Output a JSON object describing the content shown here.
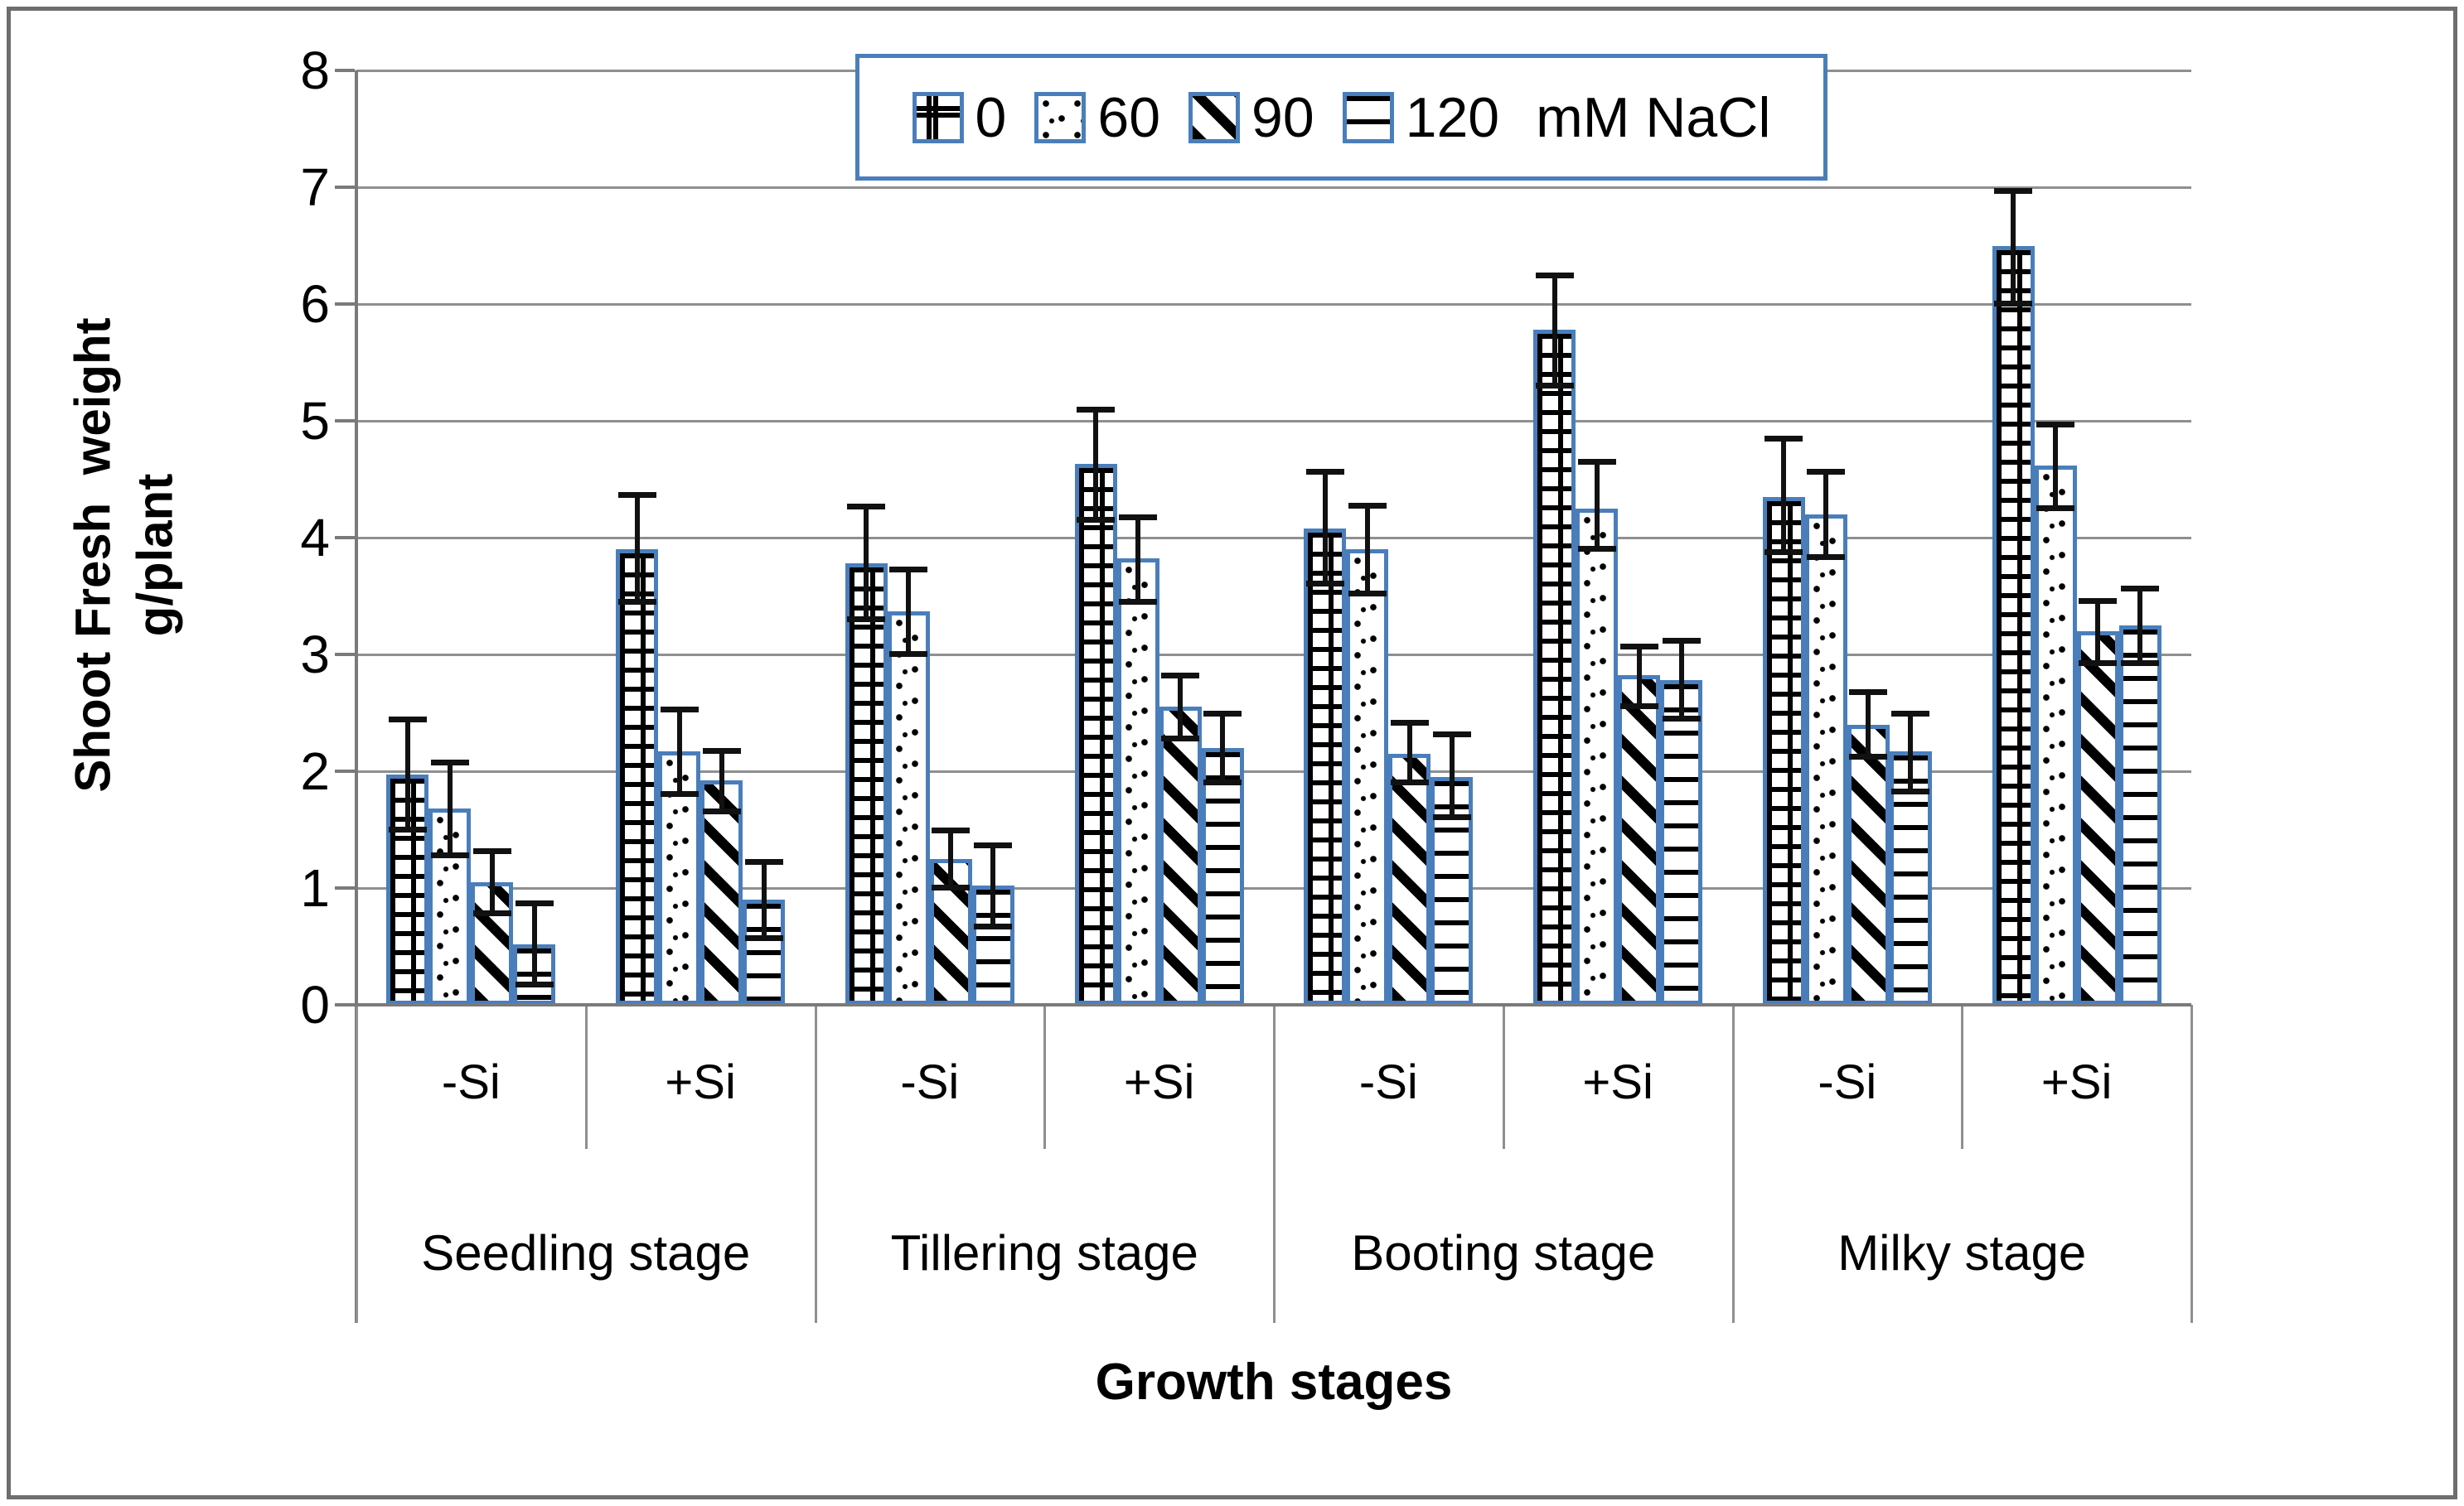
{
  "colors": {
    "bar_border": "#4a7ebb",
    "legend_border": "#4a7ebb",
    "gridline": "#8f8f8f",
    "axis": "#7a7a7a",
    "error_bar": "#111111",
    "frame": "#6e6e6e"
  },
  "chart_data": {
    "type": "bar",
    "title": "",
    "ylabel": "Shoot Fresh  weight\ng/plant",
    "xlabel": "Growth stages",
    "ylim": [
      0,
      8
    ],
    "yticks": [
      "0",
      "1",
      "2",
      "3",
      "4",
      "5",
      "6",
      "7",
      "8"
    ],
    "grid": true,
    "legend_position": "top-center",
    "legend": {
      "items": [
        {
          "label": "0",
          "pattern": "grid",
          "swatch_icon": "grid-pattern-icon"
        },
        {
          "label": "60",
          "pattern": "dots",
          "swatch_icon": "dots-pattern-icon"
        },
        {
          "label": "90",
          "pattern": "diag",
          "swatch_icon": "diagonal-stripes-icon"
        },
        {
          "label": "120",
          "pattern": "hlines",
          "swatch_icon": "horizontal-lines-icon"
        }
      ],
      "suffix": "mM NaCl"
    },
    "series_names": [
      "0 mM NaCl",
      "60 mM NaCl",
      "90 mM NaCl",
      "120 mM NaCl"
    ],
    "stages": [
      {
        "label": "Seedling stage",
        "groups": [
          {
            "label": "-Si",
            "values": [
              1.97,
              1.68,
              1.05,
              0.52
            ],
            "err_low": [
              1.5,
              1.28,
              0.78,
              0.17
            ],
            "err_high": [
              2.45,
              2.08,
              1.32,
              0.87
            ]
          },
          {
            "label": "+Si",
            "values": [
              3.9,
              2.17,
              1.92,
              0.9
            ],
            "err_low": [
              3.45,
              1.8,
              1.65,
              0.57
            ],
            "err_high": [
              4.37,
              2.53,
              2.18,
              1.23
            ]
          }
        ]
      },
      {
        "label": "Tillering stage",
        "groups": [
          {
            "label": "-Si",
            "values": [
              3.78,
              3.37,
              1.25,
              1.02
            ],
            "err_low": [
              3.3,
              3.0,
              1.0,
              0.67
            ],
            "err_high": [
              4.27,
              3.73,
              1.5,
              1.37
            ]
          },
          {
            "label": "+Si",
            "values": [
              4.63,
              3.82,
              2.55,
              2.2
            ],
            "err_low": [
              4.15,
              3.45,
              2.28,
              1.9
            ],
            "err_high": [
              5.1,
              4.18,
              2.82,
              2.5
            ]
          }
        ]
      },
      {
        "label": "Booting stage",
        "groups": [
          {
            "label": "-Si",
            "values": [
              4.08,
              3.9,
              2.15,
              1.95
            ],
            "err_low": [
              3.6,
              3.52,
              1.9,
              1.6
            ],
            "err_high": [
              4.57,
              4.28,
              2.42,
              2.32
            ]
          },
          {
            "label": "+Si",
            "values": [
              5.78,
              4.25,
              2.82,
              2.78
            ],
            "err_low": [
              5.3,
              3.9,
              2.55,
              2.45
            ],
            "err_high": [
              6.25,
              4.65,
              3.07,
              3.12
            ]
          }
        ]
      },
      {
        "label": "Milky stage",
        "groups": [
          {
            "label": "-Si",
            "values": [
              4.35,
              4.2,
              2.4,
              2.17
            ],
            "err_low": [
              3.87,
              3.83,
              2.12,
              1.82
            ],
            "err_high": [
              4.85,
              4.57,
              2.68,
              2.5
            ]
          },
          {
            "label": "+Si",
            "values": [
              6.5,
              4.62,
              3.2,
              3.25
            ],
            "err_low": [
              6.0,
              4.25,
              2.92,
              2.92
            ],
            "err_high": [
              6.97,
              4.97,
              3.46,
              3.57
            ]
          }
        ]
      }
    ]
  }
}
